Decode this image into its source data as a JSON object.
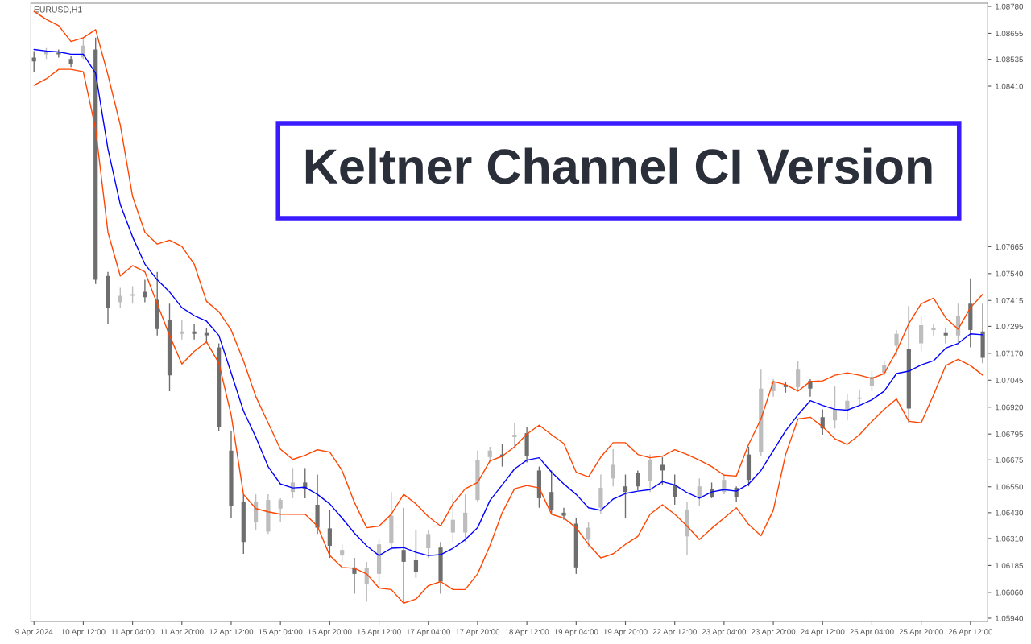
{
  "chart_data": {
    "type": "candlestick",
    "title": "Keltner Channel CI Version",
    "annotations": [
      "EURUSD,H1"
    ],
    "categories": [
      "9 Apr 2024",
      null,
      null,
      null,
      "10 Apr 12:00",
      null,
      null,
      null,
      "11 Apr 04:00",
      null,
      null,
      null,
      "11 Apr 20:00",
      null,
      null,
      null,
      "12 Apr 12:00",
      null,
      null,
      null,
      "15 Apr 04:00",
      null,
      null,
      null,
      "15 Apr 20:00",
      null,
      null,
      null,
      "16 Apr 12:00",
      null,
      null,
      null,
      "17 Apr 04:00",
      null,
      null,
      null,
      "17 Apr 20:00",
      null,
      null,
      null,
      "18 Apr 12:00",
      null,
      null,
      null,
      "19 Apr 04:00",
      null,
      null,
      null,
      "19 Apr 20:00",
      null,
      null,
      null,
      "22 Apr 12:00",
      null,
      null,
      null,
      "23 Apr 04:00",
      null,
      null,
      null,
      "23 Apr 20:00",
      null,
      null,
      null,
      "24 Apr 12:00",
      null,
      null,
      null,
      "25 Apr 04:00",
      null,
      null,
      null,
      "25 Apr 20:00",
      null,
      null,
      null,
      "26 Apr 12:00",
      null
    ],
    "ohlc": [
      [
        1.08543,
        1.08573,
        1.08477,
        1.08525
      ],
      [
        1.08558,
        1.08587,
        1.08536,
        1.08573
      ],
      [
        1.08565,
        1.0858,
        1.08543,
        1.08558
      ],
      [
        1.08536,
        1.0855,
        1.08499,
        1.08514
      ],
      [
        1.08543,
        1.08635,
        1.08536,
        1.08598
      ],
      [
        1.0858,
        1.08635,
        1.07492,
        1.07511
      ],
      [
        1.07529,
        1.07548,
        1.07308,
        1.07382
      ],
      [
        1.07407,
        1.07474,
        1.07382,
        1.07437
      ],
      [
        1.07437,
        1.07481,
        1.074,
        1.07444
      ],
      [
        1.07455,
        1.07511,
        1.07407,
        1.0743
      ],
      [
        1.07418,
        1.07548,
        1.07253,
        1.07282
      ],
      [
        1.07326,
        1.074,
        1.06994,
        1.07068
      ],
      [
        1.0726,
        1.07326,
        1.07234,
        1.07271
      ],
      [
        1.07271,
        1.07308,
        1.07234,
        1.0726
      ],
      [
        1.07264,
        1.07289,
        1.07216,
        1.07253
      ],
      [
        1.07197,
        1.07216,
        1.0681,
        1.06829
      ],
      [
        1.06718,
        1.0681,
        1.06405,
        1.0646
      ],
      [
        1.06478,
        1.06515,
        1.06239,
        1.06294
      ],
      [
        1.06386,
        1.06515,
        1.06349,
        1.06478
      ],
      [
        1.06342,
        1.06515,
        1.06331,
        1.06489
      ],
      [
        1.06449,
        1.06497,
        1.06386,
        1.06489
      ],
      [
        1.06526,
        1.06637,
        1.06497,
        1.0657
      ],
      [
        1.0657,
        1.06637,
        1.06497,
        1.06541
      ],
      [
        1.06467,
        1.06607,
        1.06331,
        1.0636
      ],
      [
        1.06357,
        1.06441,
        1.0622,
        1.06276
      ],
      [
        1.06231,
        1.06283,
        1.06202,
        1.06257
      ],
      [
        1.06176,
        1.0622,
        1.06054,
        1.06146
      ],
      [
        1.06099,
        1.06202,
        1.06017,
        1.06172
      ],
      [
        1.06146,
        1.06305,
        1.06091,
        1.06283
      ],
      [
        1.06287,
        1.06526,
        1.06257,
        1.06416
      ],
      [
        1.06257,
        1.06453,
        1.06017,
        1.06202
      ],
      [
        1.06209,
        1.06349,
        1.06128,
        1.06154
      ],
      [
        1.06265,
        1.06349,
        1.0622,
        1.06331
      ],
      [
        1.06268,
        1.06294,
        1.06054,
        1.0611
      ],
      [
        1.06338,
        1.06515,
        1.06294,
        1.06397
      ],
      [
        1.06338,
        1.06515,
        1.06294,
        1.0643
      ],
      [
        1.06489,
        1.06718,
        1.06478,
        1.06674
      ],
      [
        1.06688,
        1.06736,
        1.06663,
        1.06718
      ],
      [
        1.067,
        1.06747,
        1.06644,
        1.06692
      ],
      [
        1.06781,
        1.06847,
        1.06736,
        1.06792
      ],
      [
        1.06799,
        1.06829,
        1.06663,
        1.06692
      ],
      [
        1.06626,
        1.06644,
        1.06453,
        1.06497
      ],
      [
        1.06526,
        1.06626,
        1.06423,
        1.06441
      ],
      [
        1.0643,
        1.06453,
        1.06397,
        1.06416
      ],
      [
        1.06379,
        1.06405,
        1.06146,
        1.06176
      ],
      [
        1.06305,
        1.06386,
        1.06268,
        1.0636
      ],
      [
        1.06453,
        1.06607,
        1.06423,
        1.06545
      ],
      [
        1.06589,
        1.06725,
        1.06552,
        1.06652
      ],
      [
        1.06552,
        1.06607,
        1.06405,
        1.06526
      ],
      [
        1.06615,
        1.06626,
        1.06534,
        1.06552
      ],
      [
        1.06578,
        1.067,
        1.06526,
        1.06674
      ],
      [
        1.06652,
        1.06688,
        1.06559,
        1.06626
      ],
      [
        1.06559,
        1.06607,
        1.06467,
        1.06504
      ],
      [
        1.0632,
        1.06478,
        1.06231,
        1.06441
      ],
      [
        1.06497,
        1.06589,
        1.0646,
        1.06552
      ],
      [
        1.06541,
        1.0657,
        1.06497,
        1.06504
      ],
      [
        1.06526,
        1.06607,
        1.06515,
        1.06582
      ],
      [
        1.06545,
        1.06552,
        1.06478,
        1.06504
      ],
      [
        1.067,
        1.06736,
        1.06552,
        1.06582
      ],
      [
        1.06711,
        1.07094,
        1.06692,
        1.07006
      ],
      [
        1.06994,
        1.0705,
        1.06969,
        1.07039
      ],
      [
        1.07024,
        1.07039,
        1.06987,
        1.07013
      ],
      [
        1.07013,
        1.07135,
        1.06994,
        1.07094
      ],
      [
        1.07042,
        1.0705,
        1.06969,
        1.07006
      ],
      [
        1.06873,
        1.0691,
        1.06792,
        1.06821
      ],
      [
        1.06858,
        1.0702,
        1.06821,
        1.0691
      ],
      [
        1.0691,
        1.06983,
        1.06858,
        1.0695
      ],
      [
        1.06958,
        1.07002,
        1.06932,
        1.06965
      ],
      [
        1.0702,
        1.07087,
        1.06994,
        1.07061
      ],
      [
        1.07079,
        1.07135,
        1.07068,
        1.07116
      ],
      [
        1.07205,
        1.07278,
        1.0716,
        1.0726
      ],
      [
        1.0719,
        1.07389,
        1.06847,
        1.06913
      ],
      [
        1.07216,
        1.07345,
        1.07179,
        1.073
      ],
      [
        1.07278,
        1.07308,
        1.07253,
        1.07289
      ],
      [
        1.07264,
        1.07289,
        1.07216,
        1.07253
      ],
      [
        1.07253,
        1.074,
        1.07208,
        1.07345
      ],
      [
        1.074,
        1.07518,
        1.07197,
        1.07278
      ],
      [
        1.07271,
        1.074,
        1.07124,
        1.07149
      ]
    ],
    "colors": [
      "#6e6e6e",
      "#bdbdbd",
      "#6e6e6e",
      "#6e6e6e",
      "#bdbdbd",
      "#6e6e6e",
      "#6e6e6e",
      "#bdbdbd",
      "#bdbdbd",
      "#6e6e6e",
      "#6e6e6e",
      "#6e6e6e",
      "#bdbdbd",
      "#6e6e6e",
      "#6e6e6e",
      "#6e6e6e",
      "#6e6e6e",
      "#6e6e6e",
      "#bdbdbd",
      "#bdbdbd",
      "#bdbdbd",
      "#bdbdbd",
      "#6e6e6e",
      "#6e6e6e",
      "#6e6e6e",
      "#bdbdbd",
      "#6e6e6e",
      "#bdbdbd",
      "#bdbdbd",
      "#bdbdbd",
      "#6e6e6e",
      "#6e6e6e",
      "#bdbdbd",
      "#6e6e6e",
      "#bdbdbd",
      "#bdbdbd",
      "#bdbdbd",
      "#bdbdbd",
      "#6e6e6e",
      "#bdbdbd",
      "#6e6e6e",
      "#6e6e6e",
      "#6e6e6e",
      "#6e6e6e",
      "#6e6e6e",
      "#bdbdbd",
      "#bdbdbd",
      "#bdbdbd",
      "#6e6e6e",
      "#6e6e6e",
      "#bdbdbd",
      "#6e6e6e",
      "#6e6e6e",
      "#bdbdbd",
      "#bdbdbd",
      "#6e6e6e",
      "#bdbdbd",
      "#6e6e6e",
      "#6e6e6e",
      "#bdbdbd",
      "#bdbdbd",
      "#6e6e6e",
      "#bdbdbd",
      "#6e6e6e",
      "#6e6e6e",
      "#bdbdbd",
      "#bdbdbd",
      "#bdbdbd",
      "#bdbdbd",
      "#bdbdbd",
      "#bdbdbd",
      "#6e6e6e",
      "#bdbdbd",
      "#bdbdbd",
      "#6e6e6e",
      "#bdbdbd",
      "#6e6e6e",
      "#6e6e6e"
    ],
    "series": [
      {
        "type": "line",
        "color": "#ff4500",
        "values": [
          1.08757,
          1.0872,
          1.08691,
          1.08617,
          1.08635,
          1.08672,
          1.08462,
          1.0823,
          1.07898,
          1.07732,
          1.07677,
          1.07695,
          1.07666,
          1.07584,
          1.07411,
          1.07363,
          1.07278,
          1.07135,
          1.06969,
          1.06847,
          1.06725,
          1.06677,
          1.06696,
          1.06722,
          1.06711,
          1.06626,
          1.06478,
          1.0636,
          1.06368,
          1.06423,
          1.06515,
          1.06471,
          1.06412,
          1.06368,
          1.06471,
          1.06541,
          1.0657,
          1.0667,
          1.06692,
          1.06736,
          1.06795,
          1.06836,
          1.06792,
          1.06751,
          1.06618,
          1.06596,
          1.06688,
          1.06755,
          1.06755,
          1.067,
          1.06685,
          1.06692,
          1.06722,
          1.067,
          1.06674,
          1.06644,
          1.06604,
          1.066,
          1.06747,
          1.06865,
          1.07039,
          1.07024,
          1.06994,
          1.07039,
          1.07042,
          1.07068,
          1.07079,
          1.07068,
          1.07053,
          1.07076,
          1.07179,
          1.07308,
          1.074,
          1.07426,
          1.07334,
          1.07282,
          1.07382,
          1.07444
        ]
      },
      {
        "type": "line",
        "color": "#0000ff",
        "values": [
          1.0858,
          1.08573,
          1.08569,
          1.08558,
          1.08558,
          1.08469,
          1.08119,
          1.07861,
          1.0771,
          1.07584,
          1.07511,
          1.07455,
          1.07382,
          1.07345,
          1.07319,
          1.07253,
          1.07079,
          1.06902,
          1.06781,
          1.06644,
          1.06563,
          1.06545,
          1.06548,
          1.06515,
          1.06471,
          1.06405,
          1.06335,
          1.06276,
          1.06231,
          1.06265,
          1.06268,
          1.06246,
          1.06231,
          1.06235,
          1.06265,
          1.06305,
          1.0636,
          1.06486,
          1.06559,
          1.06633,
          1.06674,
          1.06685,
          1.06618,
          1.06563,
          1.06515,
          1.06453,
          1.06441,
          1.06493,
          1.06519,
          1.0653,
          1.06537,
          1.06574,
          1.06559,
          1.06523,
          1.06497,
          1.06526,
          1.06537,
          1.0653,
          1.06563,
          1.06626,
          1.06718,
          1.0681,
          1.06884,
          1.0695,
          1.06928,
          1.0691,
          1.06906,
          1.06928,
          1.06954,
          1.06994,
          1.07076,
          1.07087,
          1.07116,
          1.07135,
          1.07194,
          1.07216,
          1.0726,
          1.07256
        ]
      },
      {
        "type": "line",
        "color": "#ff4500",
        "values": [
          1.08414,
          1.08444,
          1.08488,
          1.08488,
          1.08477,
          1.08211,
          1.07732,
          1.07529,
          1.07577,
          1.07548,
          1.074,
          1.07253,
          1.0712,
          1.07179,
          1.07223,
          1.07124,
          1.06884,
          1.06515,
          1.06449,
          1.06434,
          1.06423,
          1.06423,
          1.06423,
          1.06368,
          1.06231,
          1.06176,
          1.06172,
          1.06146,
          1.0608,
          1.06073,
          1.0601,
          1.06029,
          1.06091,
          1.0611,
          1.06073,
          1.06073,
          1.06146,
          1.06276,
          1.0643,
          1.06541,
          1.06556,
          1.06545,
          1.06423,
          1.06405,
          1.0636,
          1.06283,
          1.0622,
          1.06239,
          1.06283,
          1.0632,
          1.06423,
          1.06467,
          1.06423,
          1.06368,
          1.06305,
          1.06357,
          1.06405,
          1.06453,
          1.06375,
          1.06323,
          1.06441,
          1.067,
          1.06865,
          1.06873,
          1.06829,
          1.06773,
          1.06747,
          1.06792,
          1.06854,
          1.0691,
          1.06958,
          1.06854,
          1.06847,
          1.06976,
          1.07113,
          1.07142,
          1.07113,
          1.07068
        ]
      }
    ],
    "ylim": [
      1.05925,
      1.08795
    ],
    "yticks": [
      {
        "value": 1.0594,
        "label": "1.05940"
      },
      {
        "value": 1.0606,
        "label": "1.06060"
      },
      {
        "value": 1.06185,
        "label": "1.06185"
      },
      {
        "value": 1.0631,
        "label": "1.06310"
      },
      {
        "value": 1.0643,
        "label": "1.06430"
      },
      {
        "value": 1.0655,
        "label": "1.06550"
      },
      {
        "value": 1.06675,
        "label": "1.06675"
      },
      {
        "value": 1.06795,
        "label": "1.06795"
      },
      {
        "value": 1.0692,
        "label": "1.06920"
      },
      {
        "value": 1.07045,
        "label": "1.07045"
      },
      {
        "value": 1.0717,
        "label": "1.07170"
      },
      {
        "value": 1.07295,
        "label": "1.07295"
      },
      {
        "value": 1.07415,
        "label": "1.07415"
      },
      {
        "value": 1.0754,
        "label": "1.07540"
      },
      {
        "value": 1.07665,
        "label": "1.07665"
      },
      {
        "value": 1.0841,
        "label": "1.08410"
      },
      {
        "value": 1.08535,
        "label": "1.08535"
      },
      {
        "value": 1.08655,
        "label": "1.08655"
      },
      {
        "value": 1.0878,
        "label": "1.08780"
      }
    ],
    "grid": false
  }
}
